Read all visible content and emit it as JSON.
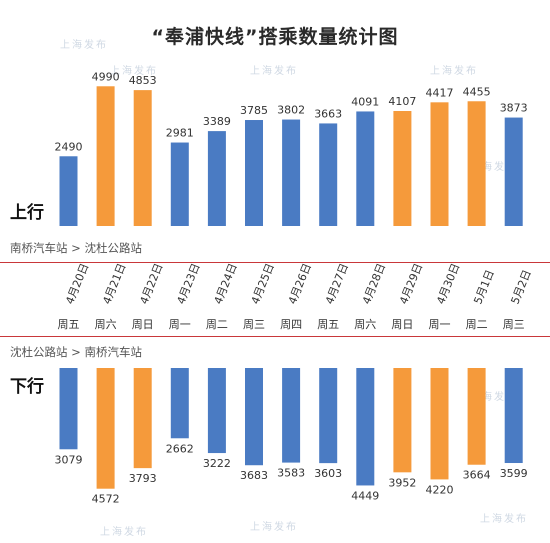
{
  "title": "“奉浦快线”搭乘数量统计图",
  "watermark": "上海发布",
  "colors": {
    "weekday": "#4a7bc3",
    "weekend": "#f59a3b",
    "separator": "#c9373a"
  },
  "chart_data": {
    "type": "bar",
    "categories": [
      "4月20日",
      "4月21日",
      "4月22日",
      "4月23日",
      "4月24日",
      "4月25日",
      "4月26日",
      "4月27日",
      "4月28日",
      "4月29日",
      "4月30日",
      "5月1日",
      "5月2日"
    ],
    "weekdays": [
      "周五",
      "周六",
      "周日",
      "周一",
      "周二",
      "周三",
      "周四",
      "周五",
      "周六",
      "周日",
      "周一",
      "周二",
      "周三"
    ],
    "weekend_flags": [
      false,
      true,
      true,
      false,
      false,
      false,
      false,
      false,
      false,
      true,
      true,
      true,
      false
    ],
    "series": [
      {
        "name": "上行",
        "route": "南桥汽车站 > 沈杜公路站",
        "values": [
          2490,
          4990,
          4853,
          2981,
          3389,
          3785,
          3802,
          3663,
          4091,
          4107,
          4417,
          4455,
          3873
        ]
      },
      {
        "name": "下行",
        "route": "沈杜公路站 > 南桥汽车站",
        "values": [
          3079,
          4572,
          3793,
          2662,
          3222,
          3683,
          3583,
          3603,
          4449,
          3952,
          4220,
          3664,
          3599
        ]
      }
    ],
    "ylim": [
      0,
      5000
    ]
  }
}
